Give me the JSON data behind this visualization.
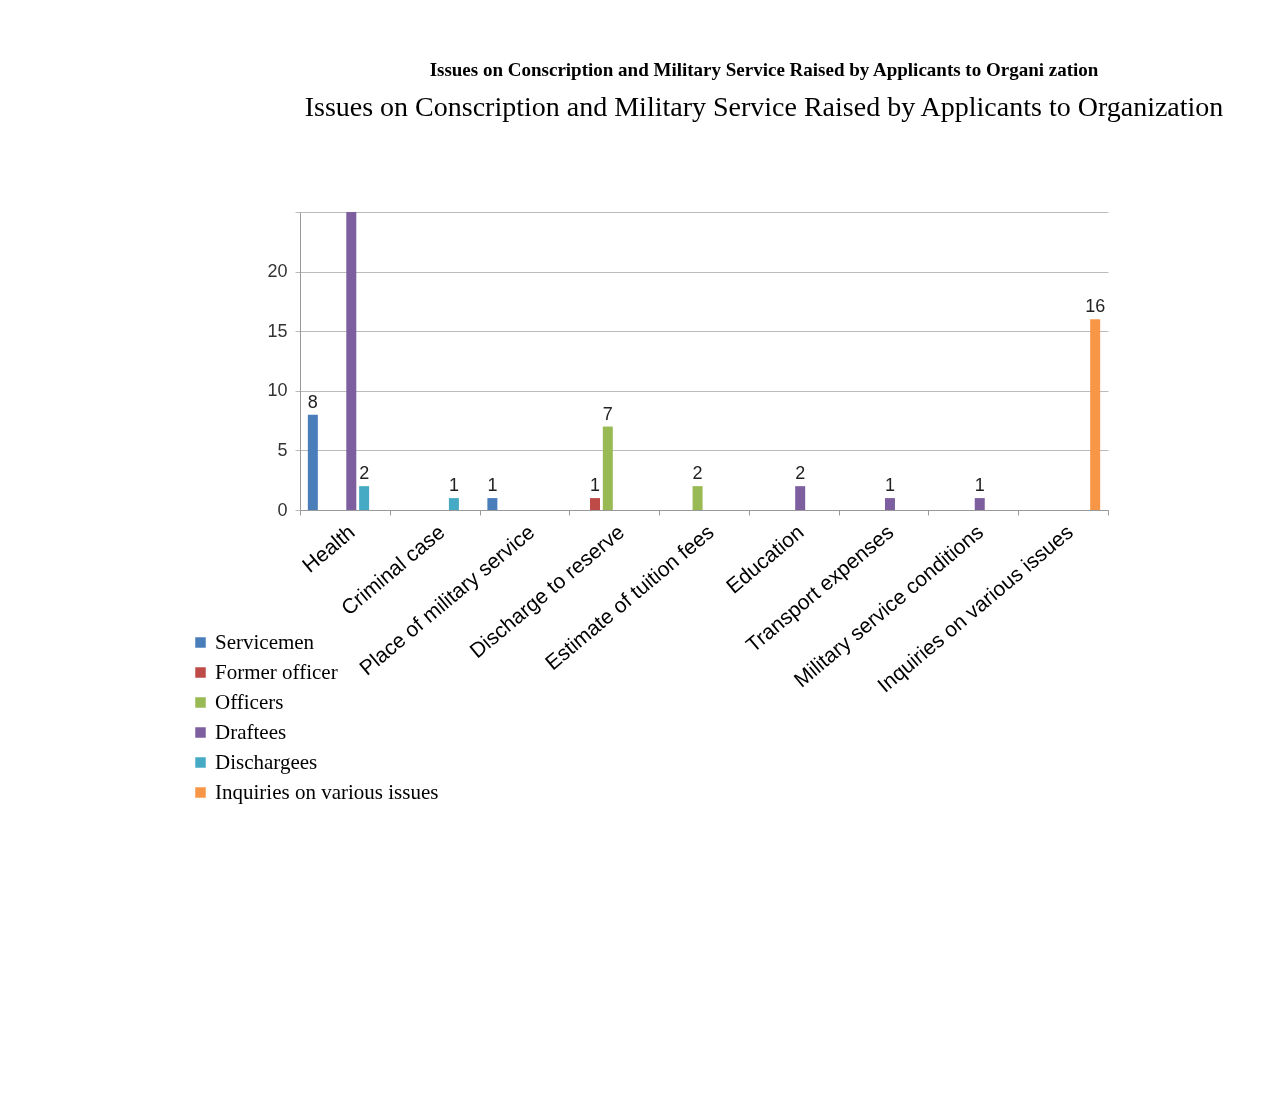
{
  "chart_data": {
    "type": "bar",
    "title": "Issues on Conscription and Military Service Raised by Applicants to Organi zation",
    "subtitle": "Issues on Conscription and Military Service Raised by Applicants to Organization",
    "categories": [
      "Health",
      "Criminal case",
      "Place of military service",
      "Discharge to reserve",
      "Estimate of tuition fees",
      "Education",
      "Transport expenses",
      "Military service conditions",
      "Inquiries on various issues"
    ],
    "series": [
      {
        "name": "Servicemen",
        "color": "#4a7ebb",
        "values": [
          8,
          null,
          1,
          null,
          null,
          null,
          null,
          null,
          null
        ],
        "value_labels": [
          "8",
          null,
          "1",
          null,
          null,
          null,
          null,
          null,
          null
        ]
      },
      {
        "name": "Former officer",
        "color": "#be4b48",
        "values": [
          null,
          null,
          null,
          1,
          null,
          null,
          null,
          null,
          null
        ],
        "value_labels": [
          null,
          null,
          null,
          "1",
          null,
          null,
          null,
          null,
          null
        ]
      },
      {
        "name": "Officers",
        "color": "#98b954",
        "values": [
          null,
          null,
          null,
          7,
          2,
          null,
          null,
          null,
          null
        ],
        "value_labels": [
          null,
          null,
          null,
          "7",
          "2",
          null,
          null,
          null,
          null
        ]
      },
      {
        "name": "Draftees",
        "color": "#7d5fa0",
        "values": [
          25,
          null,
          null,
          null,
          null,
          2,
          1,
          1,
          null
        ],
        "value_labels": [
          null,
          null,
          null,
          null,
          null,
          "2",
          "1",
          "1",
          null
        ]
      },
      {
        "name": "Dischargees",
        "color": "#46aac5",
        "values": [
          2,
          1,
          null,
          null,
          null,
          null,
          null,
          null,
          null
        ],
        "value_labels": [
          "2",
          "1",
          null,
          null,
          null,
          null,
          null,
          null,
          null
        ]
      },
      {
        "name": "Inquiries on various issues",
        "color": "#f79646",
        "values": [
          null,
          null,
          null,
          null,
          null,
          null,
          null,
          null,
          16
        ],
        "value_labels": [
          null,
          null,
          null,
          null,
          null,
          null,
          null,
          null,
          "16"
        ]
      }
    ],
    "ylim": [
      0,
      25
    ],
    "yticks": [
      0,
      5,
      10,
      15,
      20,
      {
        "value": 25,
        "label": null
      }
    ],
    "grid": "y",
    "legend": "bottom left"
  }
}
